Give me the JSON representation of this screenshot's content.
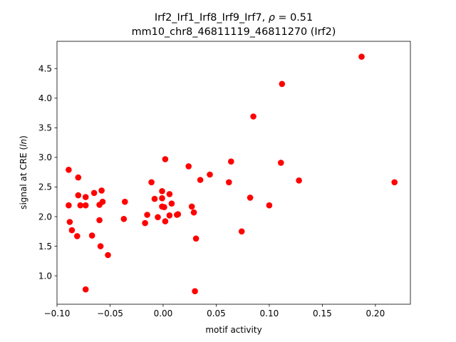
{
  "chart_data": {
    "type": "scatter",
    "title_line1": "Irf2_Irf1_Irf8_Irf9_Irf7, ",
    "title_rho_symbol": "ρ",
    "title_rho_value": " = 0.51",
    "title_line2": "mm10_chr8_46811119_46811270 (Irf2)",
    "xlabel": "motif activity",
    "ylabel_prefix": "signal at CRE (",
    "ylabel_italic": "ln",
    "ylabel_suffix": ")",
    "xlim": [
      -0.1,
      0.233
    ],
    "ylim": [
      0.52,
      4.96
    ],
    "xticks": [
      -0.1,
      -0.05,
      0.0,
      0.05,
      0.1,
      0.15,
      0.2
    ],
    "xtick_labels": [
      "−0.10",
      "−0.05",
      "0.00",
      "0.05",
      "0.10",
      "0.15",
      "0.20"
    ],
    "yticks": [
      1.0,
      1.5,
      2.0,
      2.5,
      3.0,
      3.5,
      4.0,
      4.5
    ],
    "ytick_labels": [
      "1.0",
      "1.5",
      "2.0",
      "2.5",
      "3.0",
      "3.5",
      "4.0",
      "4.5"
    ],
    "grid": false,
    "marker_color": "#ff0000",
    "points": [
      {
        "x": -0.089,
        "y": 2.79
      },
      {
        "x": -0.089,
        "y": 2.19
      },
      {
        "x": -0.088,
        "y": 1.91
      },
      {
        "x": -0.086,
        "y": 1.77
      },
      {
        "x": -0.08,
        "y": 2.66
      },
      {
        "x": -0.08,
        "y": 2.36
      },
      {
        "x": -0.078,
        "y": 2.19
      },
      {
        "x": -0.081,
        "y": 1.67
      },
      {
        "x": -0.073,
        "y": 2.33
      },
      {
        "x": -0.073,
        "y": 2.19
      },
      {
        "x": -0.073,
        "y": 0.77
      },
      {
        "x": -0.067,
        "y": 1.68
      },
      {
        "x": -0.065,
        "y": 2.4
      },
      {
        "x": -0.06,
        "y": 2.2
      },
      {
        "x": -0.06,
        "y": 1.94
      },
      {
        "x": -0.058,
        "y": 2.44
      },
      {
        "x": -0.057,
        "y": 2.25
      },
      {
        "x": -0.059,
        "y": 1.5
      },
      {
        "x": -0.052,
        "y": 1.35
      },
      {
        "x": -0.036,
        "y": 2.25
      },
      {
        "x": -0.037,
        "y": 1.96
      },
      {
        "x": -0.017,
        "y": 1.89
      },
      {
        "x": -0.015,
        "y": 2.03
      },
      {
        "x": -0.011,
        "y": 2.58
      },
      {
        "x": -0.008,
        "y": 2.3
      },
      {
        "x": -0.005,
        "y": 1.99
      },
      {
        "x": -0.001,
        "y": 2.43
      },
      {
        "x": -0.001,
        "y": 2.31
      },
      {
        "x": -0.001,
        "y": 2.17
      },
      {
        "x": 0.001,
        "y": 2.16
      },
      {
        "x": 0.002,
        "y": 2.97
      },
      {
        "x": 0.002,
        "y": 1.92
      },
      {
        "x": 0.006,
        "y": 2.38
      },
      {
        "x": 0.006,
        "y": 2.02
      },
      {
        "x": 0.008,
        "y": 2.22
      },
      {
        "x": 0.013,
        "y": 2.03
      },
      {
        "x": 0.014,
        "y": 2.04
      },
      {
        "x": 0.024,
        "y": 2.85
      },
      {
        "x": 0.027,
        "y": 2.17
      },
      {
        "x": 0.029,
        "y": 2.07
      },
      {
        "x": 0.03,
        "y": 0.74
      },
      {
        "x": 0.031,
        "y": 1.63
      },
      {
        "x": 0.035,
        "y": 2.62
      },
      {
        "x": 0.044,
        "y": 2.71
      },
      {
        "x": 0.062,
        "y": 2.58
      },
      {
        "x": 0.064,
        "y": 2.93
      },
      {
        "x": 0.074,
        "y": 1.75
      },
      {
        "x": 0.082,
        "y": 2.32
      },
      {
        "x": 0.085,
        "y": 3.69
      },
      {
        "x": 0.1,
        "y": 2.19
      },
      {
        "x": 0.111,
        "y": 2.91
      },
      {
        "x": 0.112,
        "y": 4.24
      },
      {
        "x": 0.128,
        "y": 2.61
      },
      {
        "x": 0.187,
        "y": 4.7
      },
      {
        "x": 0.218,
        "y": 2.58
      }
    ]
  }
}
